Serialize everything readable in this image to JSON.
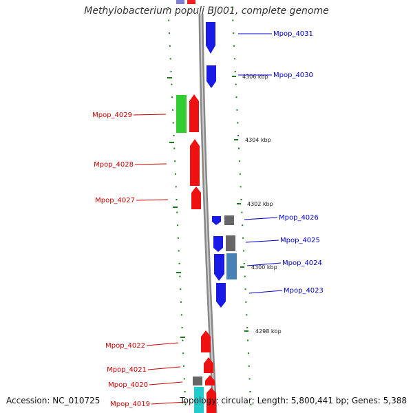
{
  "title": "Methylobacterium populi BJ001, complete genome",
  "footer": {
    "accession": "Accession: NC_010725",
    "summary": "Topology: circular; Length: 5,800,441 bp; Genes: 5,388"
  },
  "colors": {
    "forward_label": "#0000cc",
    "reverse_label": "#cc0000",
    "tick": "#1a7a1a",
    "backbone": "#888888"
  },
  "scale": {
    "unit": "kbp",
    "ticks": [
      {
        "label": "4306 kbp",
        "kbp": 4306
      },
      {
        "label": "4304 kbp",
        "kbp": 4304
      },
      {
        "label": "4302 kbp",
        "kbp": 4302
      },
      {
        "label": "4300 kbp",
        "kbp": 4300
      },
      {
        "label": "4298 kbp",
        "kbp": 4298
      }
    ]
  },
  "genes": [
    {
      "name": "Mpop_4031",
      "strand": "forward"
    },
    {
      "name": "Mpop_4030",
      "strand": "forward"
    },
    {
      "name": "Mpop_4029",
      "strand": "reverse"
    },
    {
      "name": "Mpop_4028",
      "strand": "reverse"
    },
    {
      "name": "Mpop_4027",
      "strand": "reverse"
    },
    {
      "name": "Mpop_4026",
      "strand": "forward"
    },
    {
      "name": "Mpop_4025",
      "strand": "forward"
    },
    {
      "name": "Mpop_4024",
      "strand": "forward"
    },
    {
      "name": "Mpop_4023",
      "strand": "forward"
    },
    {
      "name": "Mpop_4022",
      "strand": "reverse"
    },
    {
      "name": "Mpop_4021",
      "strand": "reverse"
    },
    {
      "name": "Mpop_4020",
      "strand": "reverse"
    },
    {
      "name": "Mpop_4019",
      "strand": "reverse"
    }
  ]
}
